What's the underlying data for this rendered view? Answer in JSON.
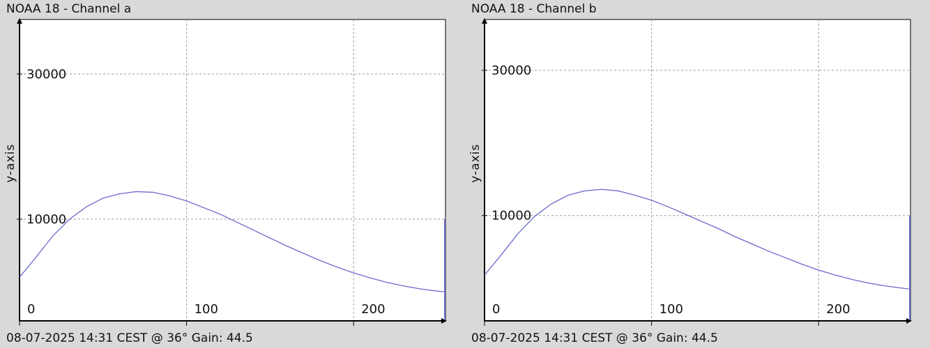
{
  "chart_data": [
    {
      "type": "line",
      "title": "NOAA 18 - Channel a",
      "ylabel": "y-axis",
      "footer": "08-07-2025 14:31 CEST @ 36° Gain: 44.5",
      "xlim": [
        0,
        255
      ],
      "ylim": [
        -4000,
        37500
      ],
      "x_ticks": [
        0,
        100,
        200
      ],
      "y_ticks": [
        10000,
        30000
      ],
      "grid": true,
      "line_color": "#6a6acc",
      "series": [
        {
          "x": [
            0,
            10,
            20,
            30,
            40,
            50,
            60,
            70,
            80,
            90,
            100,
            110,
            120,
            130,
            140,
            150,
            160,
            170,
            180,
            190,
            200,
            210,
            220,
            230,
            240,
            250,
            254
          ],
          "y": [
            2000,
            4800,
            7700,
            10000,
            11700,
            12900,
            13500,
            13800,
            13700,
            13200,
            12500,
            11600,
            10700,
            9600,
            8500,
            7400,
            6300,
            5300,
            4300,
            3400,
            2600,
            1900,
            1300,
            800,
            400,
            100,
            0
          ]
        }
      ],
      "end_spike": {
        "x": 255,
        "y": 10000
      }
    },
    {
      "type": "line",
      "title": "NOAA 18 - Channel b",
      "ylabel": "y-axis",
      "footer": "08-07-2025 14:31 CEST @ 36° Gain: 44.5",
      "xlim": [
        0,
        255
      ],
      "ylim": [
        -4500,
        37000
      ],
      "x_ticks": [
        0,
        100,
        200
      ],
      "y_ticks": [
        10000,
        30000
      ],
      "grid": true,
      "line_color": "#6a6acc",
      "series": [
        {
          "x": [
            0,
            10,
            20,
            30,
            40,
            50,
            60,
            70,
            80,
            90,
            100,
            110,
            120,
            130,
            140,
            150,
            160,
            170,
            180,
            190,
            200,
            210,
            220,
            230,
            240,
            250,
            254
          ],
          "y": [
            1800,
            4600,
            7500,
            9900,
            11600,
            12800,
            13400,
            13600,
            13400,
            12800,
            12100,
            11200,
            10200,
            9200,
            8200,
            7100,
            6100,
            5100,
            4200,
            3300,
            2500,
            1800,
            1200,
            700,
            300,
            0,
            -100
          ]
        }
      ],
      "end_spike": {
        "x": 255,
        "y": 10000
      }
    }
  ]
}
